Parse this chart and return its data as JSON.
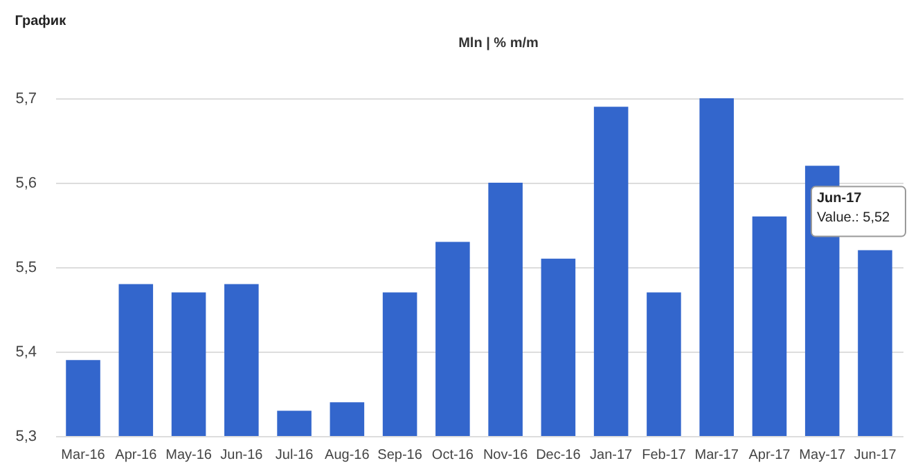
{
  "chart_data": {
    "type": "bar",
    "title": "График",
    "annotations": [
      "Mln | % m/m",
      "Jun-17",
      "Value.: 5,52"
    ],
    "categories": [
      "Mar-16",
      "Apr-16",
      "May-16",
      "Jun-16",
      "Jul-16",
      "Aug-16",
      "Sep-16",
      "Oct-16",
      "Nov-16",
      "Dec-16",
      "Jan-17",
      "Feb-17",
      "Mar-17",
      "Apr-17",
      "May-17",
      "Jun-17"
    ],
    "values": [
      5.39,
      5.48,
      5.47,
      5.48,
      5.33,
      5.34,
      5.47,
      5.53,
      5.6,
      5.51,
      5.69,
      5.47,
      5.7,
      5.56,
      5.62,
      5.52
    ],
    "color": "#3366cc",
    "ylim": [
      5.3,
      5.7
    ],
    "yticks": [
      {
        "value": 5.3,
        "label": "5,3"
      },
      {
        "value": 5.4,
        "label": "5,4"
      },
      {
        "value": 5.5,
        "label": "5,5"
      },
      {
        "value": 5.6,
        "label": "5,6"
      },
      {
        "value": 5.7,
        "label": "5,7"
      }
    ],
    "grid": "y"
  }
}
